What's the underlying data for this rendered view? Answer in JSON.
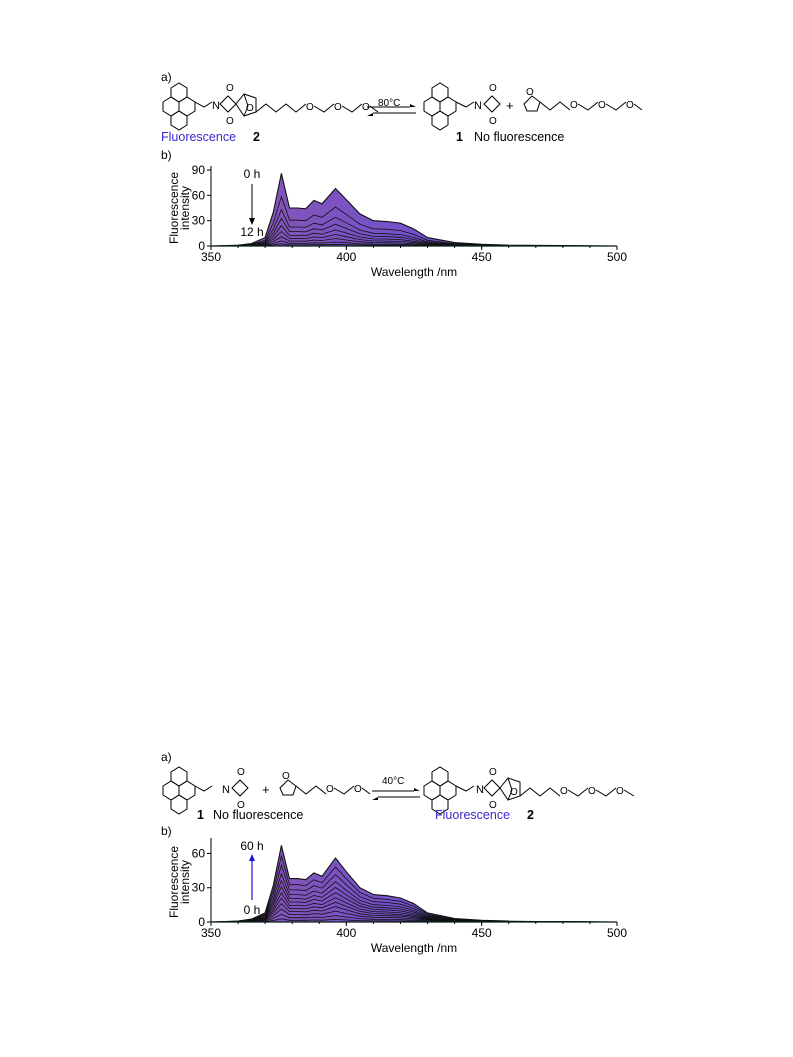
{
  "colors": {
    "fluorescence_text": "#3a2ccf",
    "fill_start": "#8a55b0",
    "fill_end": "#5a4fe8",
    "arrow_up": "#1a12d8"
  },
  "panels": [
    {
      "id": "top",
      "scheme": {
        "label": "a)",
        "left_label_word": "Fluorescence",
        "left_label_num": "2",
        "right_label_num": "1",
        "right_label_word": "No fluorescence",
        "condition": "80°C",
        "plus": "+"
      },
      "chart_label": "b)",
      "time_start": "0 h",
      "time_end": "12 h",
      "arrow_direction": "down"
    },
    {
      "id": "bottom",
      "scheme": {
        "label": "a)",
        "left_label_num": "1",
        "left_label_word": "No fluorescence",
        "right_label_word": "Fluorescence",
        "right_label_num": "2",
        "condition": "40°C",
        "plus": "+"
      },
      "chart_label": "b)",
      "time_start": "60 h",
      "time_end": "0 h",
      "arrow_direction": "up"
    }
  ],
  "chart_data": [
    {
      "type": "line",
      "xlabel": "Wavelength /nm",
      "ylabel": "Fluorescence intensity",
      "xlim": [
        350,
        500
      ],
      "ylim": [
        0,
        90
      ],
      "xticks": [
        350,
        400,
        450,
        500
      ],
      "yticks": [
        0,
        30,
        60,
        90
      ],
      "n_spectra": 9,
      "peaks_nm": [
        376,
        387,
        396,
        415
      ],
      "max_spectrum": {
        "x": [
          350,
          360,
          365,
          370,
          373,
          376,
          379,
          382,
          385,
          388,
          391,
          396,
          400,
          405,
          410,
          415,
          420,
          425,
          430,
          440,
          450,
          460,
          480,
          500
        ],
        "y": [
          0,
          1,
          3,
          10,
          40,
          86,
          45,
          45,
          44,
          54,
          50,
          68,
          55,
          38,
          30,
          29,
          27,
          20,
          10,
          4,
          2,
          1,
          0.5,
          0
        ]
      },
      "scale_factors": [
        1.0,
        0.68,
        0.5,
        0.38,
        0.28,
        0.2,
        0.13,
        0.07,
        0.03
      ]
    },
    {
      "type": "line",
      "xlabel": "Wavelength /nm",
      "ylabel": "Fluorescence intensity",
      "xlim": [
        350,
        500
      ],
      "ylim": [
        0,
        70
      ],
      "xticks": [
        350,
        400,
        450,
        500
      ],
      "yticks": [
        0,
        30,
        60
      ],
      "n_spectra": 12,
      "peaks_nm": [
        376,
        387,
        396,
        415
      ],
      "max_spectrum": {
        "x": [
          350,
          360,
          365,
          370,
          373,
          376,
          379,
          382,
          385,
          388,
          391,
          396,
          400,
          405,
          410,
          415,
          420,
          425,
          430,
          440,
          450,
          460,
          480,
          500
        ],
        "y": [
          0,
          0.8,
          2.5,
          8,
          32,
          67,
          38,
          38,
          37,
          43,
          40,
          56,
          44,
          30,
          24,
          23,
          21,
          16,
          8,
          3,
          1.5,
          0.8,
          0.4,
          0
        ]
      },
      "scale_factors": [
        1.0,
        0.86,
        0.74,
        0.63,
        0.54,
        0.46,
        0.38,
        0.31,
        0.24,
        0.17,
        0.1,
        0.04
      ]
    }
  ]
}
